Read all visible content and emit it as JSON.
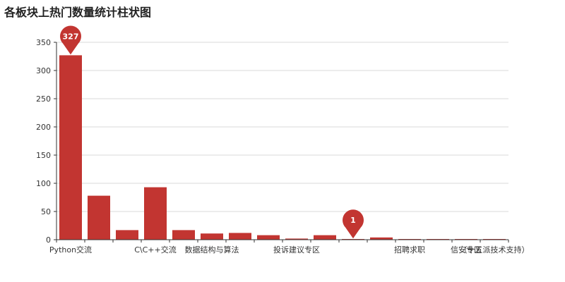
{
  "chart_data": {
    "type": "bar",
    "title": "各板块上热门数量统计柱状图",
    "categories": [
      "Python交流",
      "",
      "",
      "C\\C++交流",
      "",
      "数据结构与算法",
      "",
      "",
      "投诉建议专区",
      "",
      "",
      "",
      "招聘求职",
      "",
      "信安专区",
      "（十五派技术支持）"
    ],
    "values": [
      327,
      78,
      17,
      93,
      17,
      11,
      12,
      8,
      2,
      8,
      1,
      4,
      1,
      1,
      1,
      1
    ],
    "ylim": [
      0,
      350
    ],
    "yticks": [
      0,
      50,
      100,
      150,
      200,
      250,
      300,
      350
    ],
    "grid": true,
    "colors": {
      "bar": "#c23531",
      "grid": "#d9d9d9",
      "axis": "#333333"
    },
    "mark_points": [
      {
        "category_index": 0,
        "label": "327",
        "kind": "max"
      },
      {
        "category_index": 10,
        "label": "1",
        "kind": "min"
      }
    ]
  }
}
